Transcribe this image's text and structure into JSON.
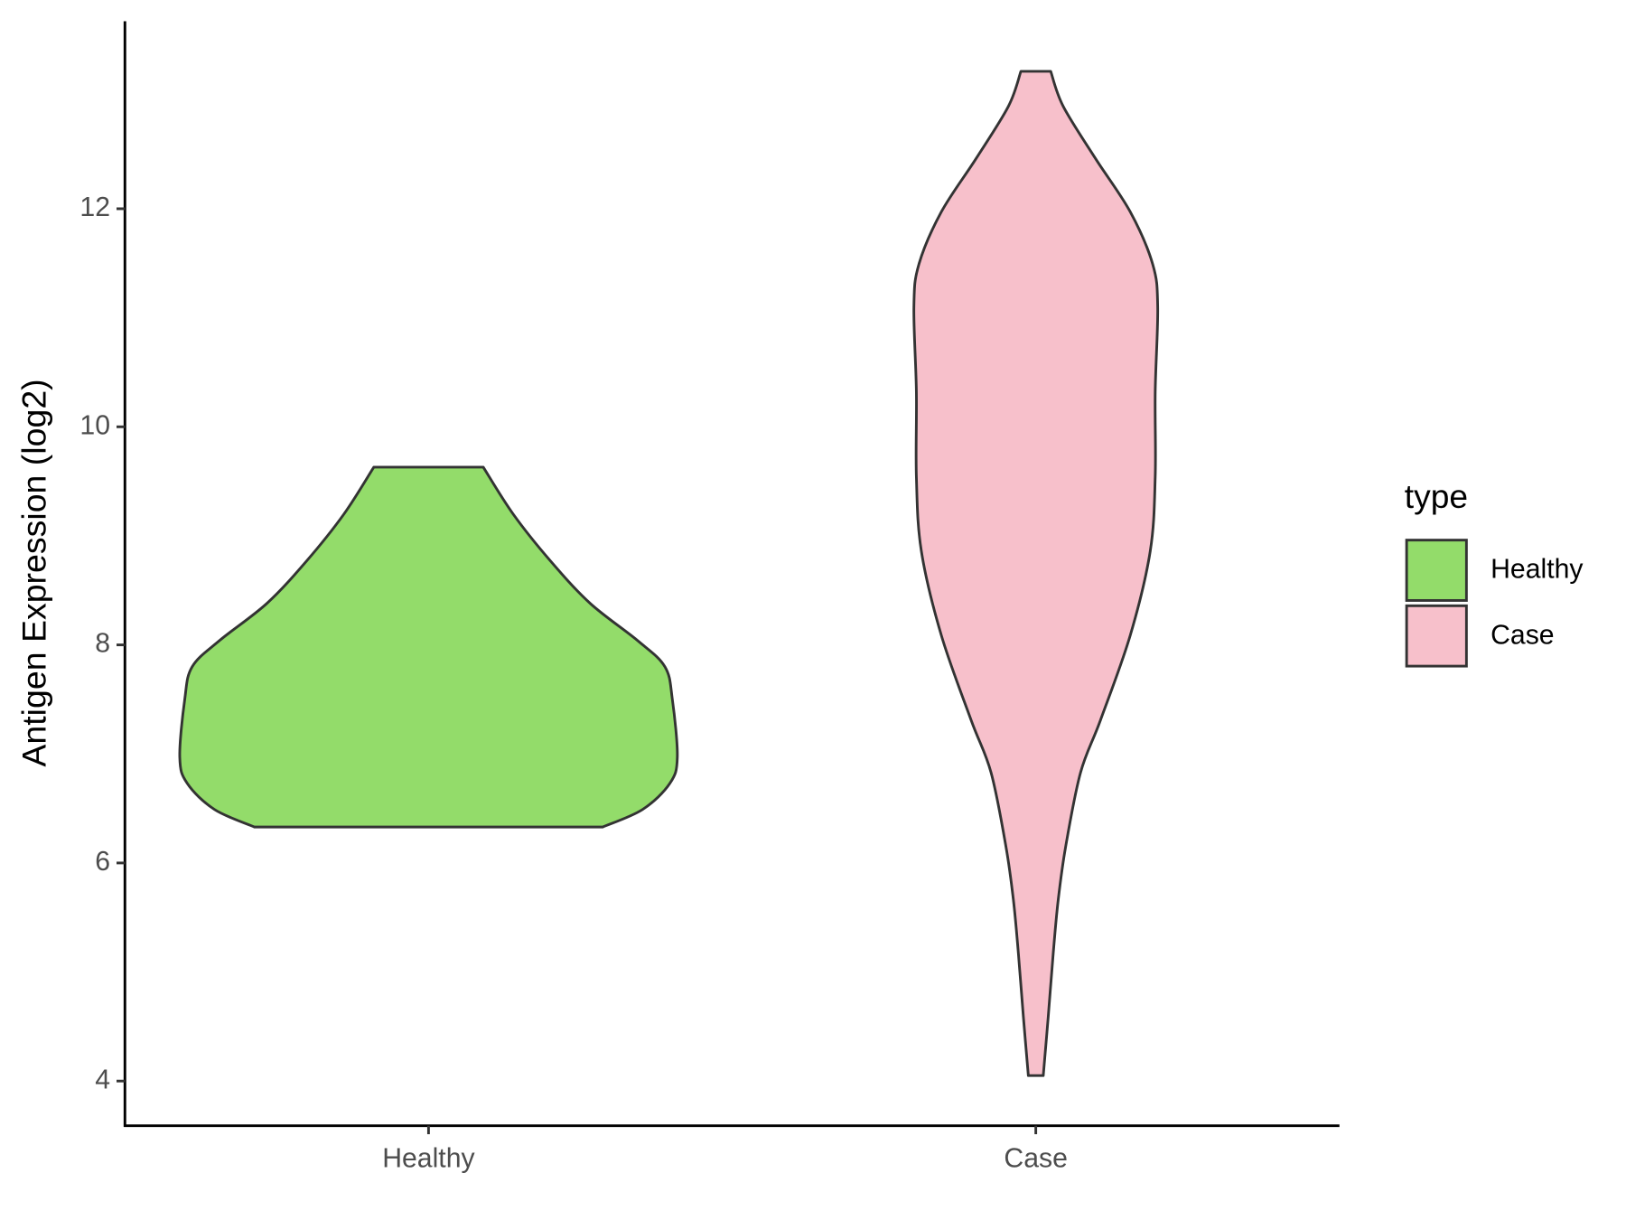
{
  "chart_data": {
    "type": "violin",
    "y_label": "Antigen Expression (log2)",
    "ylim": [
      3.59,
      13.72
    ],
    "yticks": [
      4,
      6,
      8,
      10,
      12
    ],
    "categories": [
      "Healthy",
      "Case"
    ],
    "legend_title": "type",
    "legend_position": "right",
    "series": [
      {
        "name": "Healthy",
        "color": "#93dc6a",
        "y": [
          9.63,
          9.2,
          8.77,
          8.38,
          8.04,
          7.8,
          7.5,
          6.97,
          6.73,
          6.49,
          6.33
        ],
        "density": [
          0.22,
          0.34,
          0.49,
          0.65,
          0.84,
          0.95,
          0.98,
          1.0,
          0.97,
          0.86,
          0.7
        ]
      },
      {
        "name": "Case",
        "color": "#f7c0cb",
        "y": [
          13.26,
          12.94,
          12.46,
          11.97,
          11.49,
          11.1,
          10.32,
          9.54,
          8.86,
          8.09,
          7.31,
          6.83,
          6.15,
          5.66,
          5.17,
          4.59,
          4.05
        ],
        "density": [
          0.06,
          0.11,
          0.24,
          0.38,
          0.47,
          0.49,
          0.48,
          0.48,
          0.46,
          0.38,
          0.26,
          0.18,
          0.12,
          0.09,
          0.07,
          0.05,
          0.03
        ]
      }
    ]
  }
}
